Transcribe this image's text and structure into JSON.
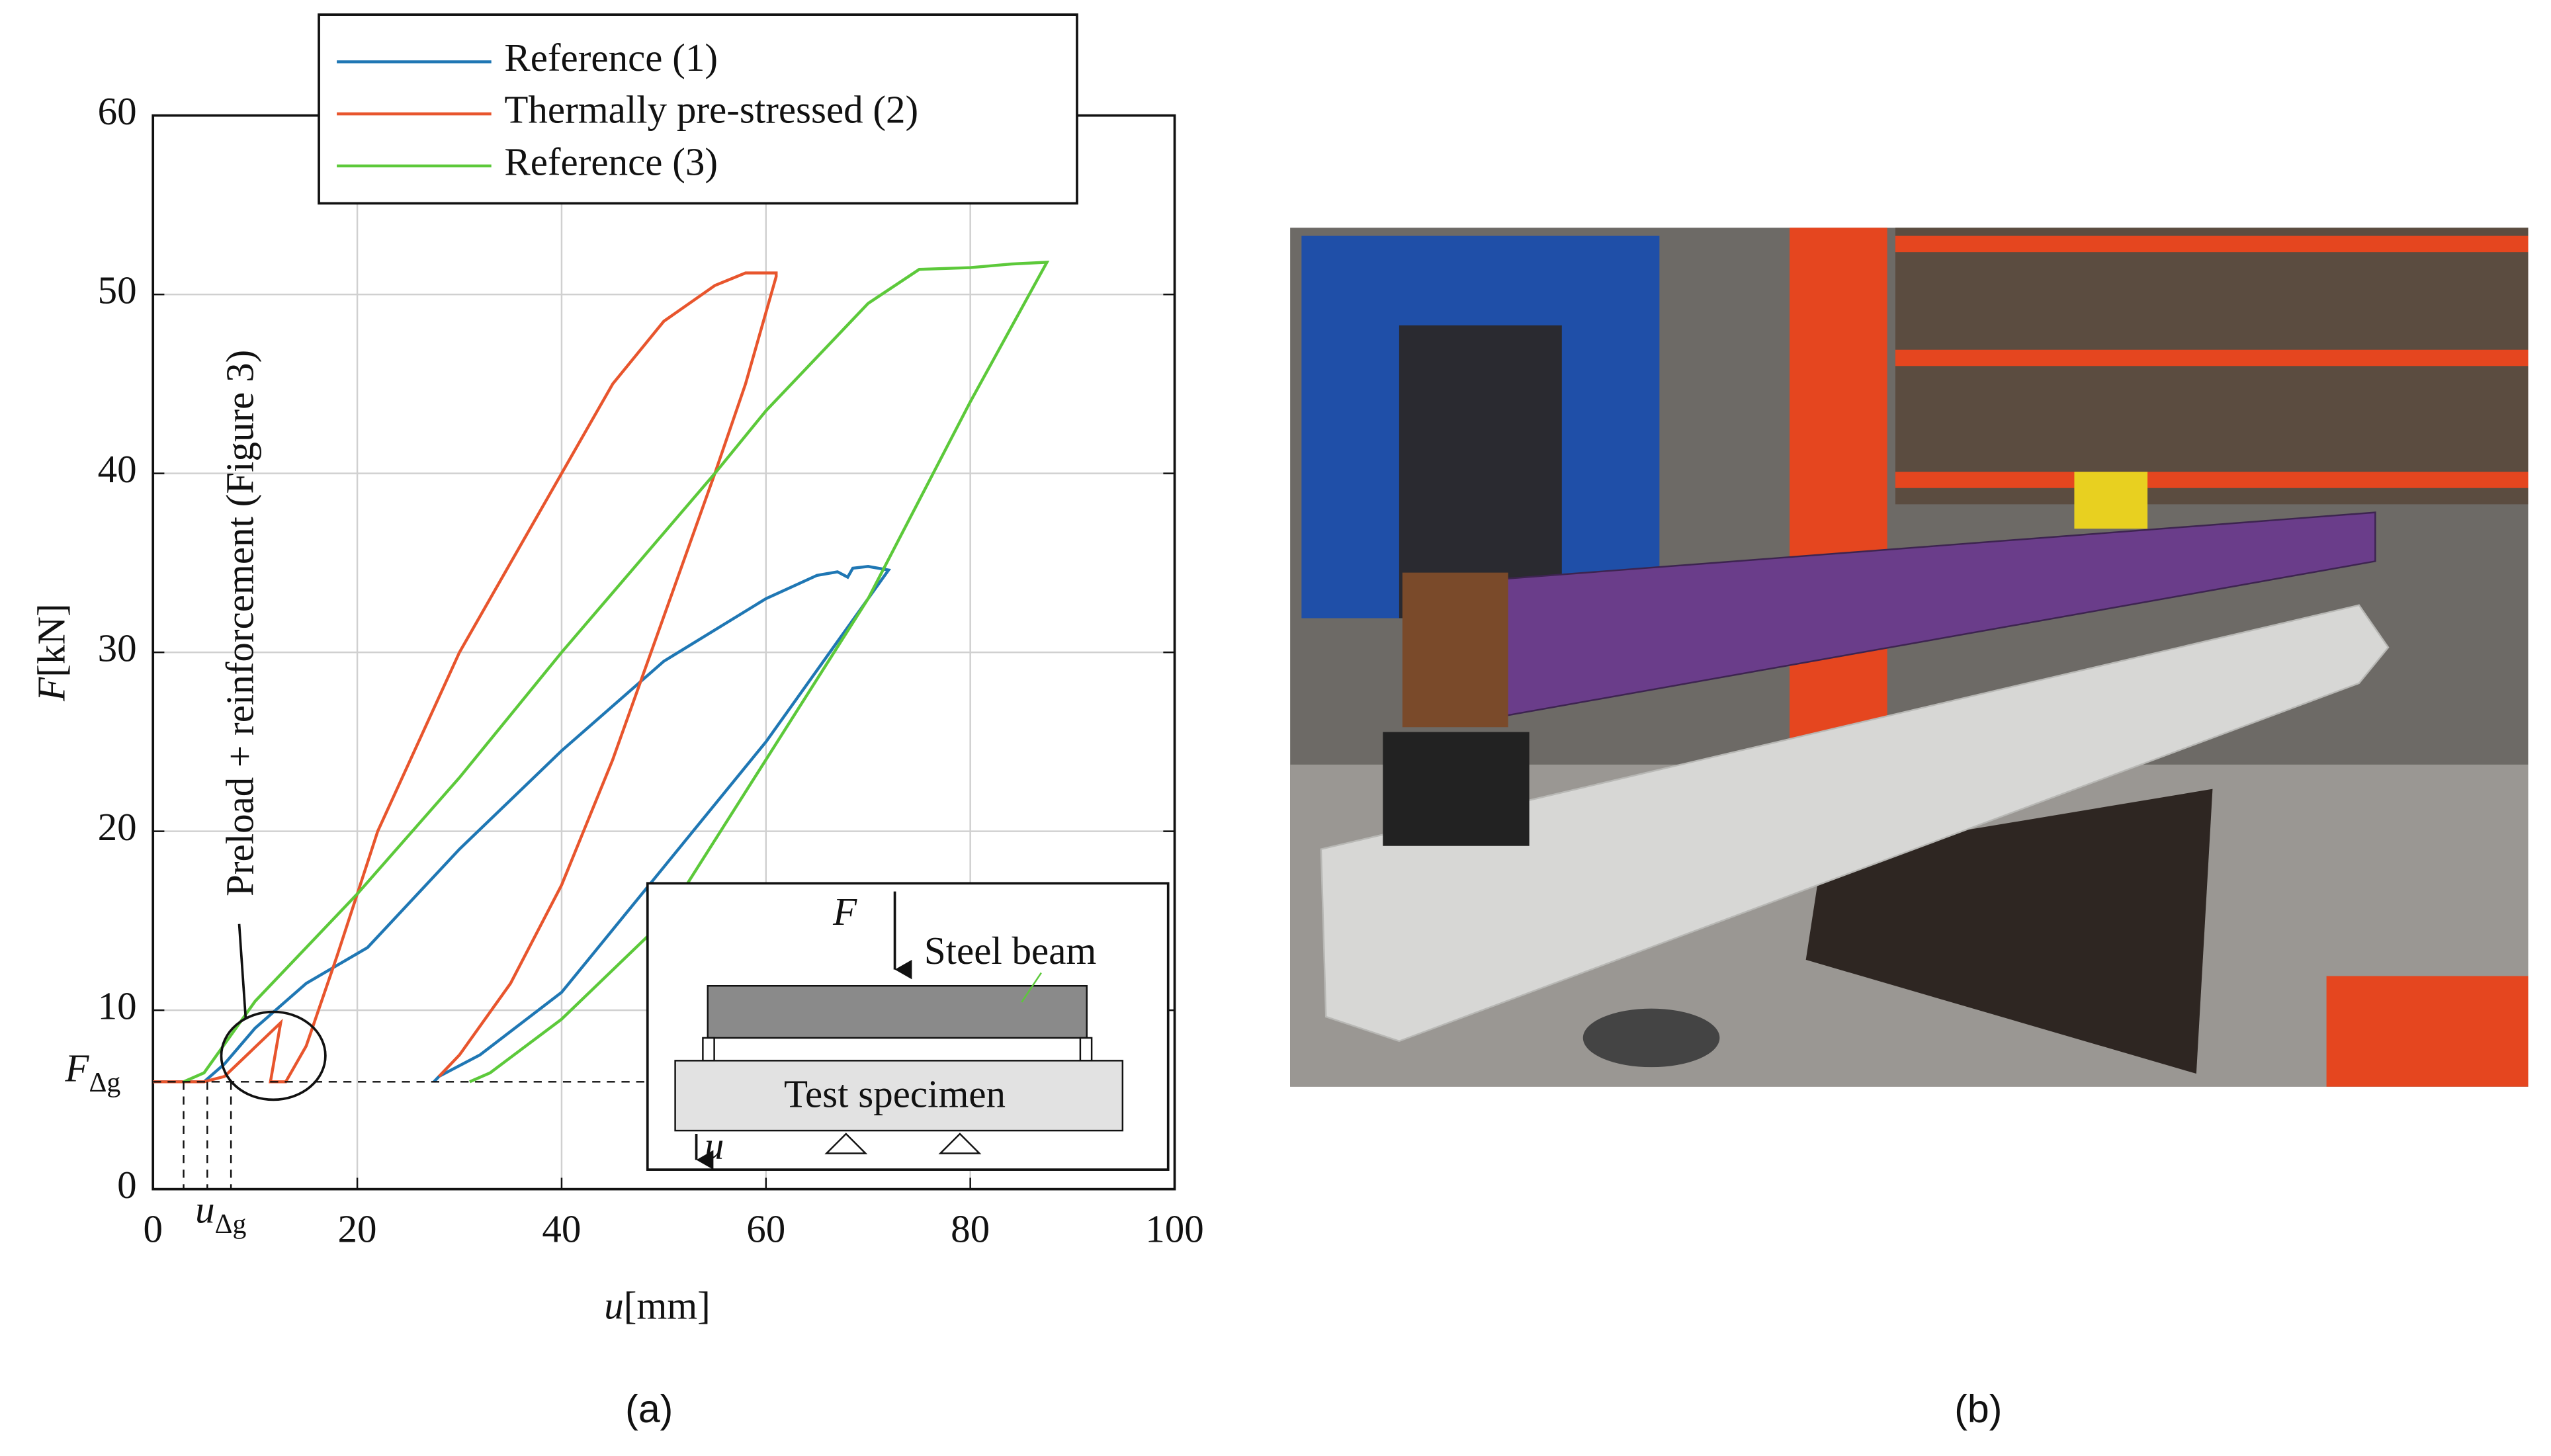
{
  "chart_data": {
    "type": "line",
    "xlabel": {
      "symbol": "u",
      "unit": "[mm]"
    },
    "ylabel": {
      "symbol": "F",
      "unit": "[kN]"
    },
    "xlim": [
      0,
      100
    ],
    "xticks": [
      0,
      20,
      40,
      60,
      80,
      100
    ],
    "ylim": [
      0,
      60
    ],
    "yticks": [
      0,
      10,
      20,
      30,
      40,
      50,
      60
    ],
    "grid": true,
    "legend": "upper center",
    "series": [
      {
        "name": "Reference (1)",
        "color": "#1f77b4",
        "x": [
          0,
          5,
          7,
          10,
          15,
          21,
          30,
          40,
          50,
          60,
          65,
          67,
          68,
          68.5,
          70,
          72,
          65,
          60,
          50,
          40,
          32,
          28,
          27.5
        ],
        "values": [
          6,
          6,
          7,
          9,
          11.5,
          13.5,
          19,
          24.5,
          29.5,
          33,
          34.3,
          34.5,
          34.2,
          34.7,
          34.8,
          34.6,
          29,
          25,
          18,
          11,
          7.5,
          6.3,
          6
        ]
      },
      {
        "name": "Thermally pre-stressed (2)",
        "color": "#e8552d",
        "x": [
          0,
          5,
          7,
          12.5,
          11.5,
          13,
          15,
          18,
          22,
          30,
          40,
          45,
          50,
          55,
          58,
          61,
          61,
          58,
          55,
          50,
          45,
          40,
          35,
          30,
          28
        ],
        "values": [
          6,
          6,
          6.3,
          9.3,
          6,
          6,
          8,
          13,
          20,
          30,
          40,
          45,
          48.5,
          50.5,
          51.2,
          51.2,
          51,
          45,
          40,
          32,
          24,
          17,
          11.5,
          7.5,
          6.3
        ]
      },
      {
        "name": "Reference (3)",
        "color": "#5cc93a",
        "x": [
          3,
          5,
          10,
          20,
          30,
          40,
          55,
          60,
          70,
          75,
          80,
          84,
          87.5,
          80,
          70,
          60,
          50,
          40,
          33,
          31
        ],
        "values": [
          6,
          6.5,
          10.5,
          16.5,
          23,
          30,
          40,
          43.5,
          49.5,
          51.4,
          51.5,
          51.7,
          51.8,
          44,
          33,
          24,
          15,
          9.5,
          6.5,
          6
        ]
      }
    ],
    "annotations": {
      "preload": "Preload + reinforcement (Figure 3)",
      "force_level": {
        "symbol": "F",
        "subscript": "Δg"
      },
      "displacement_level": {
        "symbol": "u",
        "subscript": "Δg"
      }
    },
    "inset": {
      "force": "F",
      "beam": "Steel beam",
      "specimen": "Test specimen",
      "displacement": "u"
    },
    "captions": [
      "(a)",
      "(b)"
    ]
  }
}
